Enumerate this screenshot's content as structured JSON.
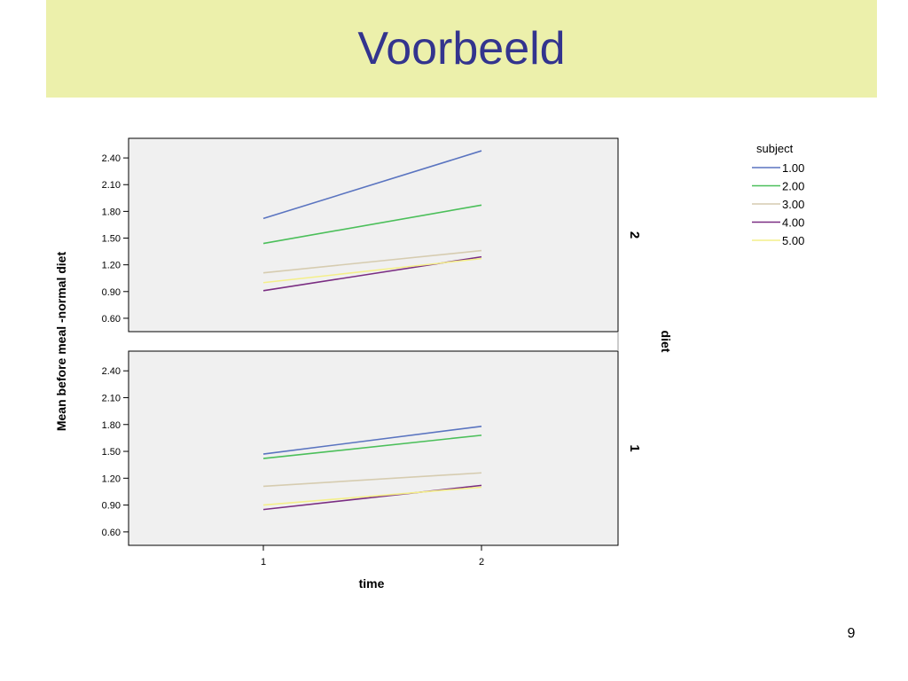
{
  "slide": {
    "title": "Voorbeeld",
    "page_number": "9"
  },
  "chart_data": {
    "type": "line",
    "xlabel": "time",
    "ylabel": "Mean before meal -normal diet",
    "panel_variable": "diet",
    "x": [
      1,
      2
    ],
    "x_tick_labels": [
      "1",
      "2"
    ],
    "y_ticks": [
      0.6,
      0.9,
      1.2,
      1.5,
      1.8,
      2.1,
      2.4
    ],
    "y_tick_labels": [
      "0.60",
      "0.90",
      "1.20",
      "1.50",
      "1.80",
      "2.10",
      "2.40"
    ],
    "ylim": [
      0.45,
      2.62
    ],
    "legend": {
      "title": "subject",
      "placement": "top-right"
    },
    "panels": [
      {
        "label": "2",
        "series": [
          {
            "name": "1.00",
            "color": "#5a74c0",
            "values": [
              1.72,
              2.48
            ]
          },
          {
            "name": "2.00",
            "color": "#4bbf5a",
            "values": [
              1.44,
              1.87
            ]
          },
          {
            "name": "3.00",
            "color": "#d6ccb0",
            "values": [
              1.11,
              1.36
            ]
          },
          {
            "name": "4.00",
            "color": "#7a2d82",
            "values": [
              0.91,
              1.29
            ]
          },
          {
            "name": "5.00",
            "color": "#f4ef8a",
            "values": [
              1.0,
              1.27
            ]
          }
        ]
      },
      {
        "label": "1",
        "series": [
          {
            "name": "1.00",
            "color": "#5a74c0",
            "values": [
              1.47,
              1.78
            ]
          },
          {
            "name": "2.00",
            "color": "#4bbf5a",
            "values": [
              1.42,
              1.68
            ]
          },
          {
            "name": "3.00",
            "color": "#d6ccb0",
            "values": [
              1.11,
              1.26
            ]
          },
          {
            "name": "4.00",
            "color": "#7a2d82",
            "values": [
              0.85,
              1.12
            ]
          },
          {
            "name": "5.00",
            "color": "#f4ef8a",
            "values": [
              0.9,
              1.1
            ]
          }
        ]
      }
    ],
    "background": "#f0f0f0",
    "grid": false
  }
}
